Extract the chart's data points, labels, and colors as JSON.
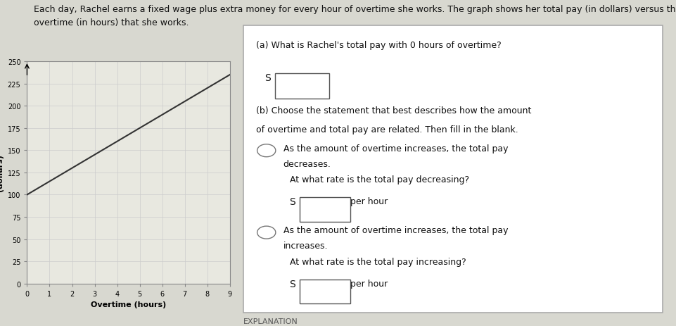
{
  "title": "",
  "xlabel": "Overtime (hours)",
  "ylabel": "Total pay\n(dollars)",
  "y_intercept": 100,
  "slope": 15,
  "x_min": 0,
  "x_max": 9,
  "y_min": 0,
  "y_max": 250,
  "y_ticks": [
    0,
    25,
    50,
    75,
    100,
    125,
    150,
    175,
    200,
    225,
    250
  ],
  "x_ticks": [
    0,
    1,
    2,
    3,
    4,
    5,
    6,
    7,
    8,
    9
  ],
  "line_color": "#333333",
  "grid_color": "#cccccc",
  "panel_bg": "#e8e8e0",
  "fig_bg": "#d8d8d0",
  "description_text_1": "Each day, Rachel earns a fixed wage plus extra money for every hour of overtime she works. The graph shows her total pay (in dollars) versus the amount",
  "description_text_2": "overtime (in hours) that she works.",
  "qa_title_a": "(a) What is Rachel's total pay with 0 hours of overtime?",
  "qa_title_b1": "(b) Choose the statement that best describes how the amount",
  "qa_title_b2": "of overtime and total pay are related. Then fill in the blank.",
  "option1_line1": "As the amount of overtime increases, the total pay",
  "option1_line2": "decreases.",
  "option1_sub": "At what rate is the total pay decreasing?",
  "option1_rate": "per hour",
  "option2_line1": "As the amount of overtime increases, the total pay",
  "option2_line2": "increases.",
  "option2_sub": "At what rate is the total pay increasing?",
  "option2_rate": "per hour",
  "explanation_label": "EXPLANATION"
}
